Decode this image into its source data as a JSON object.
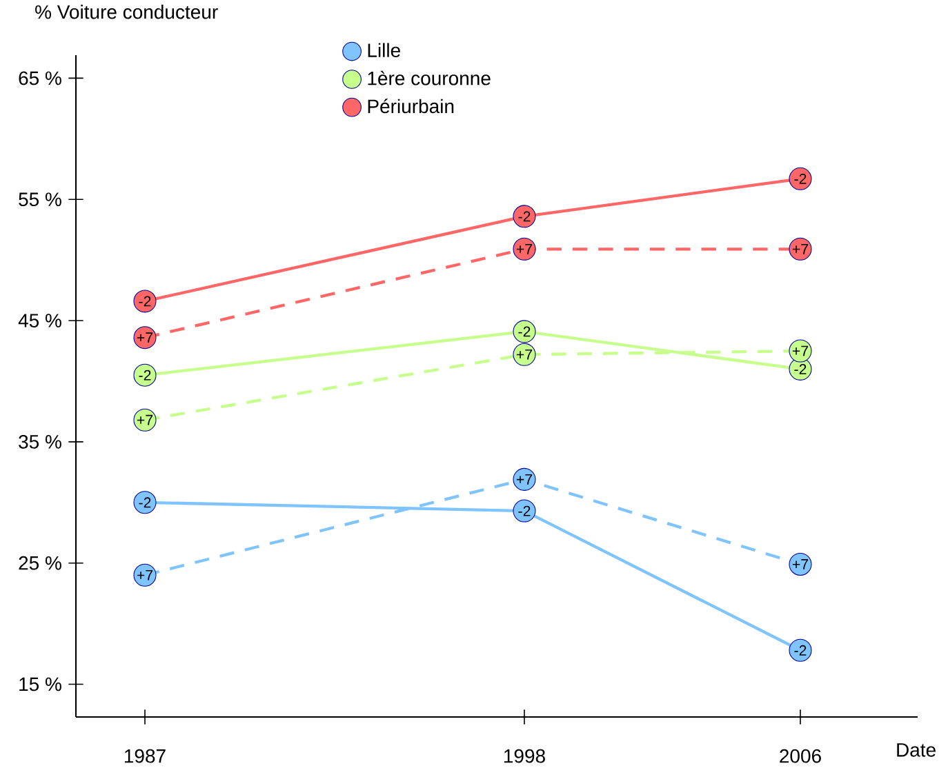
{
  "chart_data": {
    "type": "line",
    "ylabel": "% Voiture conducteur",
    "xlabel": "Date",
    "x": [
      1987,
      1998,
      2006
    ],
    "xlim": [
      1985,
      2009.4
    ],
    "xticks": [
      1987,
      1998,
      2006
    ],
    "ylim": [
      12.3,
      66.9
    ],
    "yticks": [
      {
        "value": 15,
        "label": "15 %"
      },
      {
        "value": 25,
        "label": "25 %"
      },
      {
        "value": 35,
        "label": "35 %"
      },
      {
        "value": 45,
        "label": "45 %"
      },
      {
        "value": 55,
        "label": "55 %"
      },
      {
        "value": 65,
        "label": "65 %"
      }
    ],
    "marker": "circle",
    "legend": "top",
    "series": [
      {
        "name": "Lille",
        "color": "#80c4ff",
        "values": [
          30.0,
          29.3,
          17.8
        ]
      },
      {
        "color": "#80c4ff",
        "values": [
          24.0,
          31.9,
          24.9
        ],
        "line_style": "dashed"
      },
      {
        "name": "1ère couronne",
        "color": "#c6ff8c",
        "values": [
          40.5,
          44.1,
          41.0
        ]
      },
      {
        "color": "#c6ff8c",
        "values": [
          36.8,
          42.2,
          42.5
        ],
        "line_style": "dashed"
      },
      {
        "name": "Périurbain",
        "color": "#ff6666",
        "values": [
          46.6,
          53.6,
          56.7
        ]
      },
      {
        "color": "#ff6666",
        "values": [
          43.6,
          50.9,
          50.9
        ],
        "line_style": "dashed"
      }
    ],
    "annotations": [
      {
        "text": "-2",
        "x": 1987,
        "y": 30.0
      },
      {
        "text": "-2",
        "x": 1998,
        "y": 29.3
      },
      {
        "text": "-2",
        "x": 2006,
        "y": 17.8
      },
      {
        "text": "+7",
        "x": 1987,
        "y": 24.0
      },
      {
        "text": "+7",
        "x": 1998,
        "y": 31.9
      },
      {
        "text": "+7",
        "x": 2006,
        "y": 24.9
      },
      {
        "text": "-2",
        "x": 1987,
        "y": 40.5
      },
      {
        "text": "-2",
        "x": 1998,
        "y": 44.1
      },
      {
        "text": "-2",
        "x": 2006,
        "y": 41.0
      },
      {
        "text": "+7",
        "x": 1987,
        "y": 36.8
      },
      {
        "text": "+7",
        "x": 1998,
        "y": 42.2
      },
      {
        "text": "+7",
        "x": 2006,
        "y": 42.5
      },
      {
        "text": "-2",
        "x": 1987,
        "y": 46.6
      },
      {
        "text": "-2",
        "x": 1998,
        "y": 53.6
      },
      {
        "text": "-2",
        "x": 2006,
        "y": 56.7
      },
      {
        "text": "+7",
        "x": 1987,
        "y": 43.6
      },
      {
        "text": "+7",
        "x": 1998,
        "y": 50.9
      },
      {
        "text": "+7",
        "x": 2006,
        "y": 50.9
      }
    ]
  }
}
